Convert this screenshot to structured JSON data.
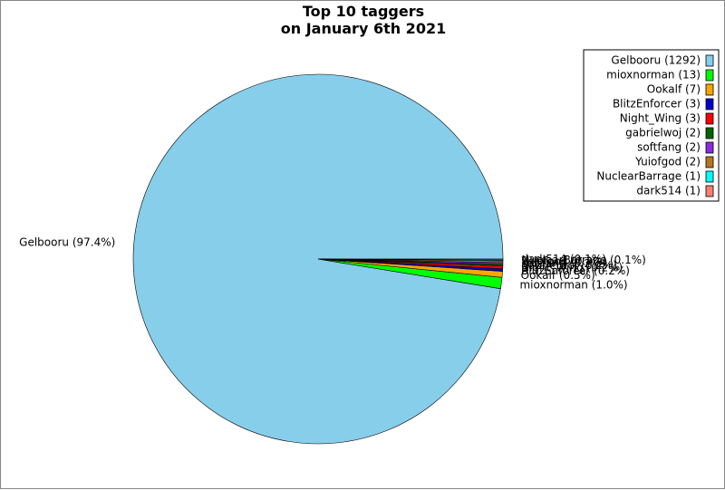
{
  "chart_data": {
    "type": "pie",
    "title": "Top 10 taggers\non January 6th 2021",
    "categories": [
      "Gelbooru",
      "mioxnorman",
      "Ookalf",
      "BlitzEnforcer",
      "Night_Wing",
      "gabrielwoj",
      "softfang",
      "Yuiofgod",
      "NuclearBarrage",
      "dark514"
    ],
    "values": [
      1292,
      13,
      7,
      3,
      3,
      2,
      2,
      2,
      1,
      1
    ],
    "legend_labels": [
      "Gelbooru (1292)",
      "mioxnorman (13)",
      "Ookalf (7)",
      "BlitzEnforcer (3)",
      "Night_Wing (3)",
      "gabrielwoj (2)",
      "softfang (2)",
      "Yuiofgod (2)",
      "NuclearBarrage (1)",
      "dark514 (1)"
    ],
    "value_labels": [
      "Gelbooru (97.4%)",
      "mioxnorman (1.0%)",
      "Ookalf (0.5%)",
      "BlitzEnforcer (0.2%)",
      "Night_Wing (0.2%)",
      "gabrielwoj (0.2%)",
      "softfang (0.2%)",
      "Yuiofgod (0.2%)",
      "NuclearBarrage (0.1%)",
      "dark514 (0.1%)"
    ],
    "colors": [
      "#87ceeb",
      "#00ff00",
      "#ffa500",
      "#0000cd",
      "#ff0000",
      "#006400",
      "#8a2be2",
      "#b8751f",
      "#00ffff",
      "#fa8072"
    ],
    "legend": "upper right"
  }
}
